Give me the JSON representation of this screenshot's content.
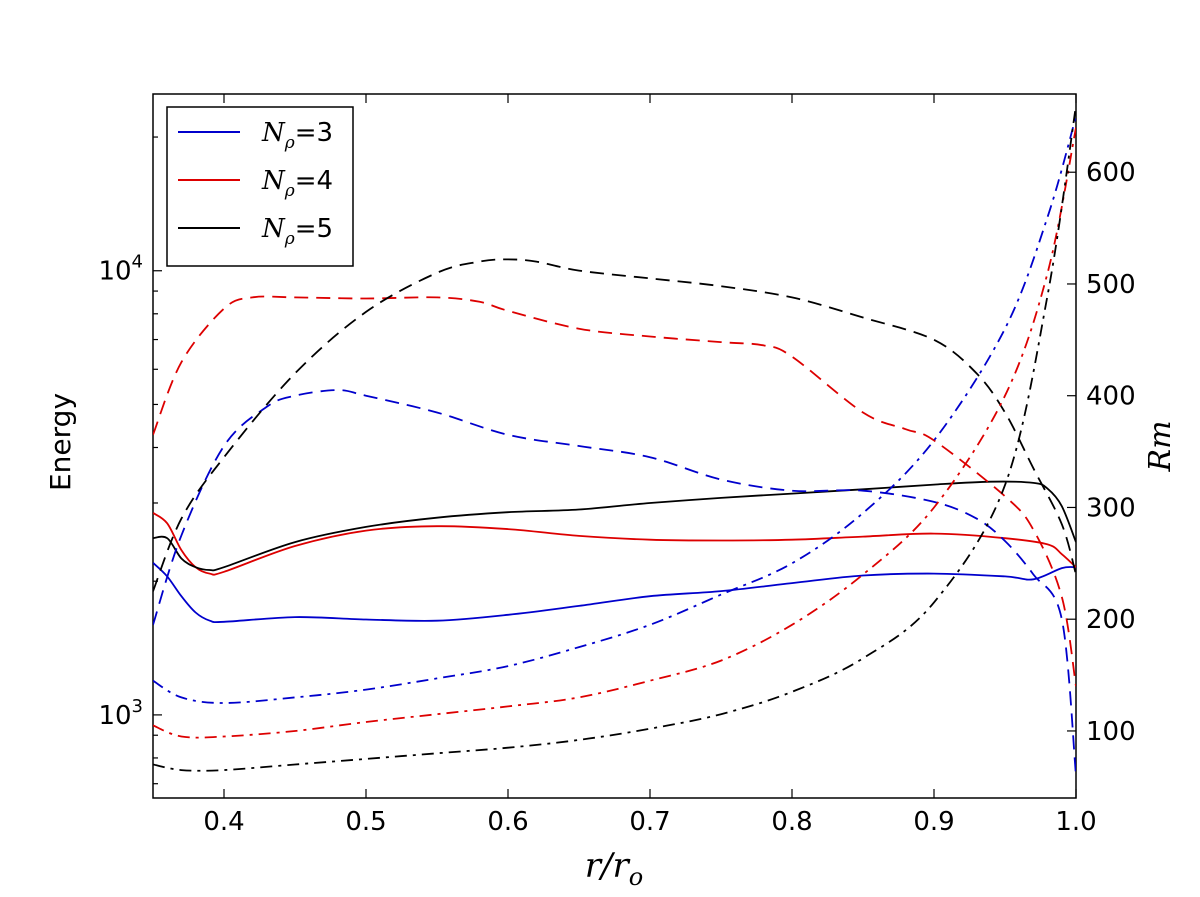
{
  "chart_data": {
    "type": "line",
    "xlabel": "r/r_o",
    "ylabel_left": "Energy",
    "ylabel_right": "Rm",
    "xlim": [
      0.35,
      1.0
    ],
    "ylim_left": [
      650,
      25000
    ],
    "yscale_left": "log",
    "ylim_right": [
      40,
      670
    ],
    "x_ticks": [
      "0.4",
      "0.5",
      "0.6",
      "0.7",
      "0.8",
      "0.9",
      "1.0"
    ],
    "x_tick_values": [
      0.4,
      0.5,
      0.6,
      0.7,
      0.8,
      0.9,
      1.0
    ],
    "left_ticks": [
      {
        "value": 1000,
        "mantissa": "10",
        "exp": "3"
      },
      {
        "value": 10000,
        "mantissa": "10",
        "exp": "4"
      }
    ],
    "right_ticks": [
      "100",
      "200",
      "300",
      "400",
      "500",
      "600"
    ],
    "right_tick_values": [
      100,
      200,
      300,
      400,
      500,
      600
    ],
    "legend": {
      "placement": "top-left",
      "entries": [
        {
          "label_base": "N",
          "label_sub": "ρ",
          "label_value": "=3",
          "color": "#0000cc"
        },
        {
          "label_base": "N",
          "label_sub": "ρ",
          "label_value": "=4",
          "color": "#dd0000"
        },
        {
          "label_base": "N",
          "label_sub": "ρ",
          "label_value": "=5",
          "color": "#000000"
        }
      ]
    },
    "series": [
      {
        "color": "#0000cc",
        "style": "solid",
        "axis": "left",
        "x": [
          0.35,
          0.36,
          0.37,
          0.38,
          0.39,
          0.4,
          0.45,
          0.5,
          0.55,
          0.6,
          0.65,
          0.7,
          0.75,
          0.8,
          0.85,
          0.9,
          0.95,
          0.97,
          0.99,
          1.0
        ],
        "y": [
          2200,
          2050,
          1850,
          1700,
          1630,
          1620,
          1660,
          1640,
          1630,
          1680,
          1760,
          1850,
          1900,
          1980,
          2060,
          2080,
          2050,
          2020,
          2140,
          2150
        ]
      },
      {
        "color": "#dd0000",
        "style": "solid",
        "axis": "left",
        "x": [
          0.35,
          0.36,
          0.37,
          0.38,
          0.39,
          0.4,
          0.45,
          0.5,
          0.55,
          0.6,
          0.65,
          0.7,
          0.75,
          0.8,
          0.85,
          0.9,
          0.95,
          0.98,
          0.99,
          1.0
        ],
        "y": [
          2850,
          2700,
          2350,
          2150,
          2080,
          2100,
          2400,
          2600,
          2660,
          2620,
          2530,
          2480,
          2470,
          2480,
          2520,
          2560,
          2500,
          2420,
          2300,
          2150
        ]
      },
      {
        "color": "#000000",
        "style": "solid",
        "axis": "left",
        "x": [
          0.35,
          0.36,
          0.37,
          0.38,
          0.39,
          0.4,
          0.45,
          0.5,
          0.55,
          0.6,
          0.65,
          0.7,
          0.75,
          0.8,
          0.85,
          0.9,
          0.94,
          0.97,
          0.98,
          0.99,
          1.0
        ],
        "y": [
          2500,
          2500,
          2250,
          2150,
          2120,
          2150,
          2450,
          2650,
          2780,
          2860,
          2900,
          3000,
          3080,
          3150,
          3220,
          3300,
          3350,
          3330,
          3230,
          2950,
          2450
        ]
      },
      {
        "color": "#0000cc",
        "style": "dashed",
        "axis": "right",
        "x": [
          0.35,
          0.37,
          0.4,
          0.43,
          0.45,
          0.48,
          0.5,
          0.55,
          0.6,
          0.65,
          0.7,
          0.75,
          0.8,
          0.85,
          0.9,
          0.93,
          0.95,
          0.97,
          0.99,
          1.0
        ],
        "y": [
          195,
          275,
          355,
          390,
          400,
          405,
          400,
          385,
          365,
          355,
          345,
          325,
          315,
          315,
          305,
          290,
          270,
          240,
          200,
          60
        ]
      },
      {
        "color": "#dd0000",
        "style": "dashed",
        "axis": "right",
        "x": [
          0.35,
          0.37,
          0.4,
          0.42,
          0.45,
          0.5,
          0.55,
          0.58,
          0.6,
          0.65,
          0.7,
          0.75,
          0.78,
          0.8,
          0.85,
          0.88,
          0.9,
          0.95,
          0.97,
          0.99,
          1.0
        ],
        "y": [
          365,
          430,
          478,
          488,
          488,
          487,
          488,
          484,
          476,
          460,
          453,
          448,
          445,
          435,
          385,
          370,
          360,
          310,
          280,
          220,
          140
        ]
      },
      {
        "color": "#000000",
        "style": "dashed",
        "axis": "right",
        "x": [
          0.35,
          0.37,
          0.4,
          0.45,
          0.5,
          0.55,
          0.58,
          0.6,
          0.62,
          0.65,
          0.7,
          0.75,
          0.8,
          0.85,
          0.9,
          0.93,
          0.95,
          0.97,
          0.99,
          1.0
        ],
        "y": [
          225,
          290,
          345,
          420,
          475,
          510,
          520,
          522,
          520,
          512,
          505,
          498,
          488,
          470,
          450,
          420,
          385,
          335,
          285,
          240
        ]
      },
      {
        "color": "#0000cc",
        "style": "dashdot",
        "axis": "right",
        "x": [
          0.35,
          0.37,
          0.4,
          0.45,
          0.5,
          0.55,
          0.6,
          0.65,
          0.7,
          0.75,
          0.8,
          0.85,
          0.9,
          0.95,
          0.98,
          1.0
        ],
        "y": [
          145,
          130,
          125,
          130,
          137,
          147,
          158,
          175,
          195,
          222,
          250,
          295,
          360,
          460,
          560,
          650
        ]
      },
      {
        "color": "#dd0000",
        "style": "dashdot",
        "axis": "right",
        "x": [
          0.35,
          0.37,
          0.4,
          0.45,
          0.5,
          0.55,
          0.6,
          0.65,
          0.7,
          0.75,
          0.8,
          0.85,
          0.9,
          0.95,
          0.98,
          1.0
        ],
        "y": [
          105,
          95,
          95,
          100,
          108,
          115,
          122,
          130,
          145,
          163,
          195,
          240,
          300,
          400,
          510,
          640
        ]
      },
      {
        "color": "#000000",
        "style": "dashdot",
        "axis": "right",
        "x": [
          0.35,
          0.37,
          0.4,
          0.45,
          0.5,
          0.55,
          0.6,
          0.65,
          0.7,
          0.75,
          0.8,
          0.85,
          0.9,
          0.95,
          0.98,
          1.0
        ],
        "y": [
          70,
          65,
          65,
          70,
          75,
          80,
          85,
          92,
          102,
          115,
          135,
          165,
          215,
          320,
          490,
          660
        ]
      }
    ]
  }
}
